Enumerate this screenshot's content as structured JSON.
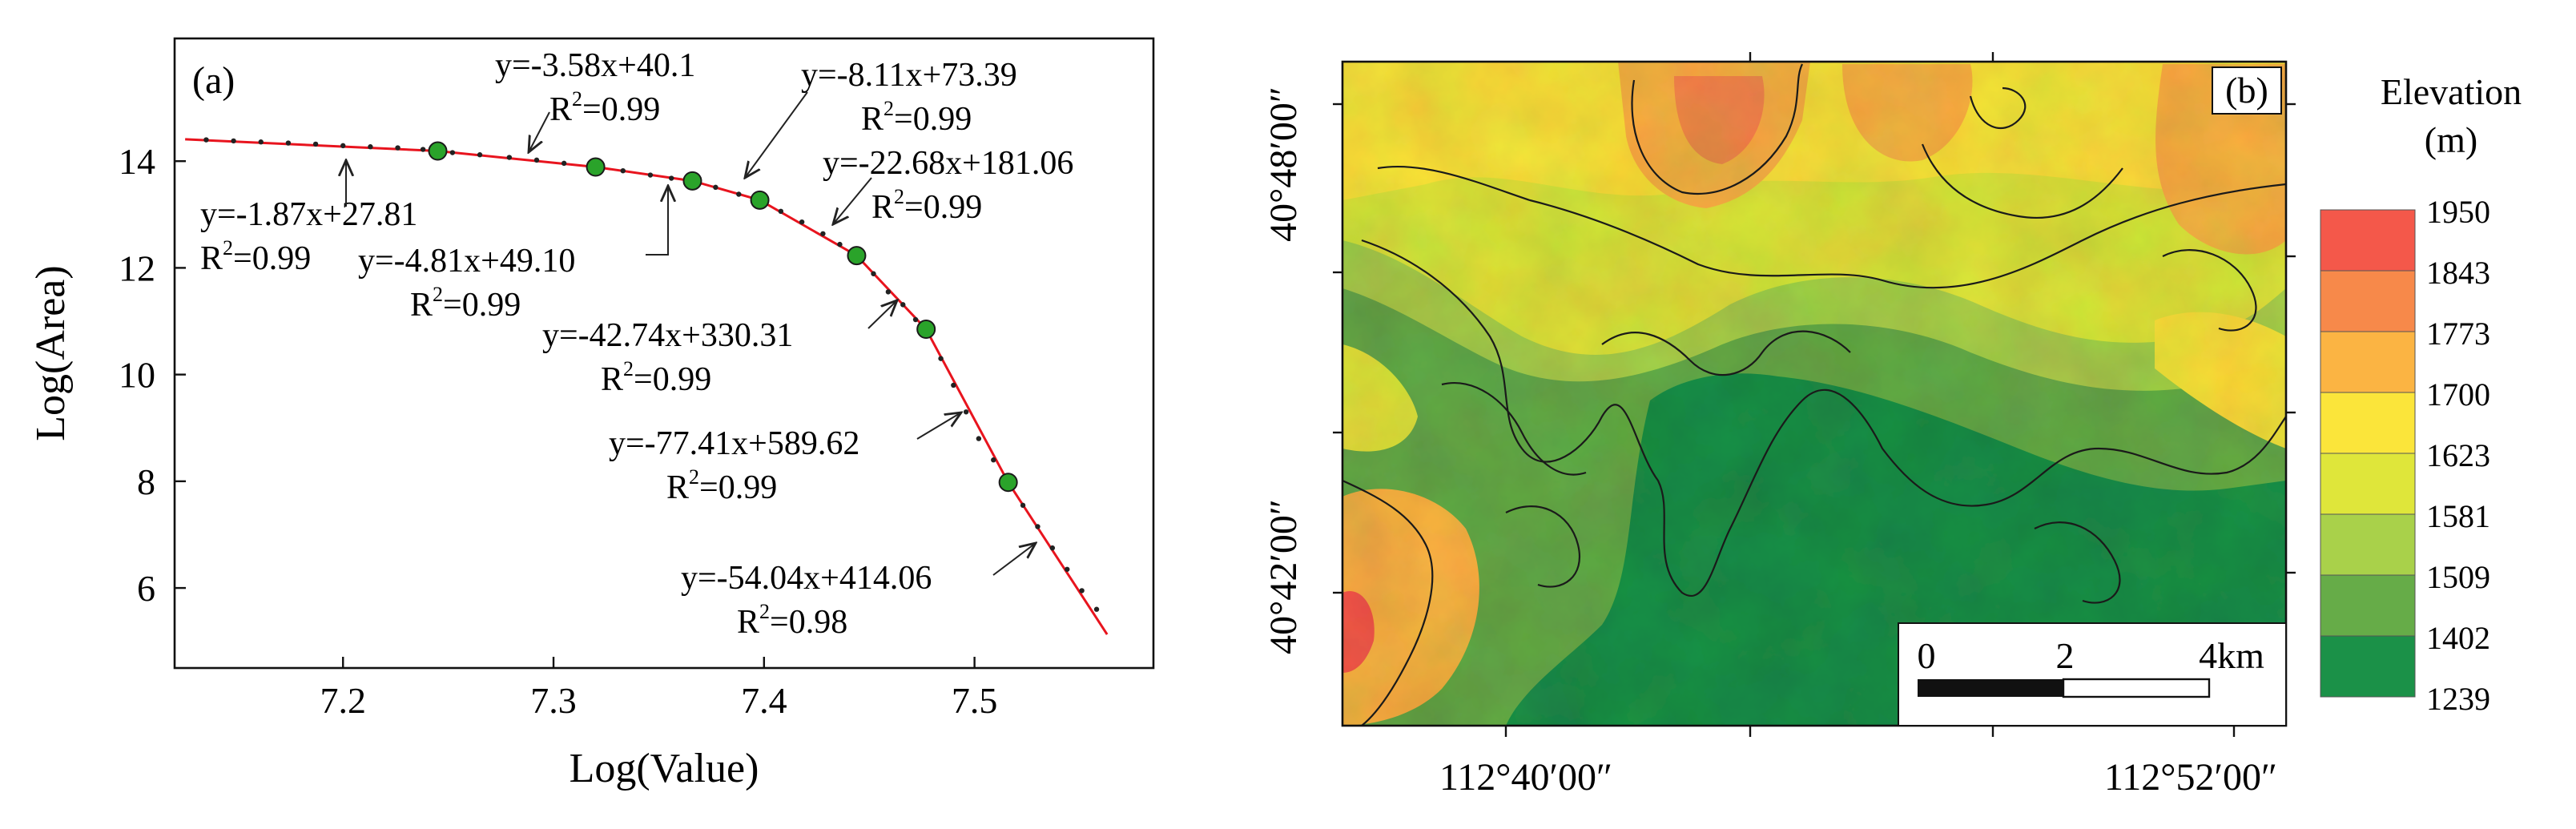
{
  "panel_a": {
    "label": "(a)",
    "chart_data": {
      "type": "line",
      "xlabel": "Log(Value)",
      "ylabel": "Log(Area)",
      "xlim": [
        7.12,
        7.585
      ],
      "ylim": [
        4.5,
        16.3
      ],
      "x_ticks": [
        7.2,
        7.3,
        7.4,
        7.5
      ],
      "x_tick_labels": [
        "7.2",
        "7.3",
        "7.4",
        "7.5"
      ],
      "y_ticks": [
        6,
        8,
        10,
        12,
        14
      ],
      "y_tick_labels": [
        "6",
        "8",
        "10",
        "12",
        "14"
      ],
      "grid": false,
      "series": [
        {
          "role": "fitted",
          "color": "#e8141e",
          "x": [
            7.125,
            7.245,
            7.32,
            7.366,
            7.398,
            7.444,
            7.477,
            7.516,
            7.563
          ],
          "y": [
            14.41,
            14.19,
            13.89,
            13.63,
            13.27,
            12.23,
            10.85,
            7.98,
            5.13
          ]
        },
        {
          "role": "observed",
          "color": "#222222",
          "x": [
            7.135,
            7.148,
            7.161,
            7.174,
            7.187,
            7.2,
            7.213,
            7.226,
            7.238,
            7.252,
            7.265,
            7.279,
            7.292,
            7.305,
            7.333,
            7.346,
            7.356,
            7.377,
            7.388,
            7.408,
            7.418,
            7.428,
            7.436,
            7.452,
            7.459,
            7.466,
            7.472,
            7.484,
            7.49,
            7.496,
            7.502,
            7.509,
            7.523,
            7.53,
            7.537,
            7.544,
            7.551,
            7.558
          ],
          "y": [
            14.4,
            14.38,
            14.36,
            14.34,
            14.32,
            14.29,
            14.27,
            14.25,
            14.22,
            14.16,
            14.12,
            14.07,
            14.02,
            13.96,
            13.82,
            13.74,
            13.68,
            13.51,
            13.38,
            13.06,
            12.86,
            12.64,
            12.44,
            11.89,
            11.55,
            11.31,
            11.03,
            10.3,
            9.8,
            9.3,
            8.8,
            8.4,
            7.55,
            7.15,
            6.75,
            6.35,
            5.95,
            5.6
          ]
        },
        {
          "role": "breakpoints",
          "color": "#2aa32a",
          "x": [
            7.245,
            7.32,
            7.366,
            7.398,
            7.444,
            7.477,
            7.516
          ],
          "y": [
            14.19,
            13.89,
            13.63,
            13.27,
            12.23,
            10.85,
            7.98
          ]
        }
      ],
      "annotations": [
        {
          "eq": "y=-1.87x+27.81",
          "r2": "=0.99"
        },
        {
          "eq": "y=-3.58x+40.1",
          "r2": "=0.99"
        },
        {
          "eq": "y=-4.81x+49.10",
          "r2": "=0.99"
        },
        {
          "eq": "y=-8.11x+73.39",
          "r2": "=0.99"
        },
        {
          "eq": "y=-22.68x+181.06",
          "r2": "=0.99"
        },
        {
          "eq": "y=-42.74x+330.31",
          "r2": "=0.99"
        },
        {
          "eq": "y=-77.41x+589.62",
          "r2": "=0.99"
        },
        {
          "eq": "y=-54.04x+414.06",
          "r2": "=0.98"
        }
      ]
    }
  },
  "panel_b": {
    "label": "(b)",
    "lat_labels": [
      "40°48′00″",
      "40°42′00″"
    ],
    "lon_labels": [
      "112°40′00″",
      "112°52′00″"
    ],
    "legend": {
      "title_line1": "Elevation",
      "title_line2": "(m)",
      "classes": [
        {
          "label": "1950",
          "color": "#f4584a"
        },
        {
          "label": "1843",
          "color": "#f7894a"
        },
        {
          "label": "1773",
          "color": "#fbb443"
        },
        {
          "label": "1700",
          "color": "#fbe53a"
        },
        {
          "label": "1623",
          "color": "#dfe63a"
        },
        {
          "label": "1581",
          "color": "#a9d14a"
        },
        {
          "label": "1509",
          "color": "#66ac48"
        },
        {
          "label": "1402",
          "color": "#1b9148"
        },
        {
          "label": "1239",
          "color": ""
        }
      ]
    },
    "scale_bar": {
      "labels": [
        "0",
        "2",
        "4km"
      ]
    }
  }
}
